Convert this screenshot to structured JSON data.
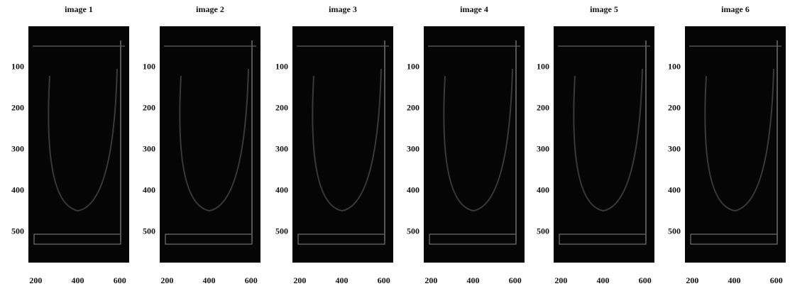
{
  "axes": {
    "xlim": [
      165,
      645
    ],
    "ylim": [
      0,
      575
    ],
    "xticks": [
      200,
      400,
      600
    ],
    "yticks": [
      100,
      200,
      300,
      400,
      500
    ]
  },
  "panels": [
    {
      "title": "image 1"
    },
    {
      "title": "image 2"
    },
    {
      "title": "image 3"
    },
    {
      "title": "image 4"
    },
    {
      "title": "image 5"
    },
    {
      "title": "image 6"
    }
  ]
}
